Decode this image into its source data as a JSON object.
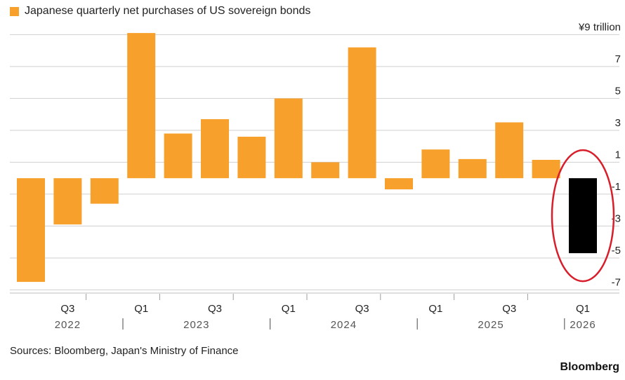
{
  "chart_data": {
    "type": "bar",
    "title": "Japanese quarterly net purchases of US sovereign bonds",
    "unit_label": "¥9 trillion",
    "legend": [
      {
        "label": "Japanese quarterly net purchases of US sovereign bonds",
        "color": "#f7a12c"
      }
    ],
    "categories": [
      "2022 Q2",
      "2022 Q3",
      "2022 Q4",
      "2023 Q1",
      "2023 Q2",
      "2023 Q3",
      "2023 Q4",
      "2024 Q1",
      "2024 Q2",
      "2024 Q3",
      "2024 Q4",
      "2025 Q1",
      "2025 Q2",
      "2025 Q3",
      "2025 Q4",
      "2026 Q1"
    ],
    "values": [
      -6.5,
      -2.9,
      -1.6,
      9.1,
      2.8,
      3.7,
      2.6,
      5.0,
      1.0,
      8.2,
      -0.7,
      1.8,
      1.2,
      3.5,
      1.15,
      -4.7
    ],
    "highlight_index": 15,
    "bar_color": "#f7a12c",
    "highlight_color": "#000000",
    "annotation_ellipse_color": "#d81e2a",
    "ylim": [
      -7.2,
      9.5
    ],
    "yticks": [
      9,
      7,
      5,
      3,
      1,
      -1,
      -3,
      -5,
      -7
    ],
    "ytick_labels": [
      "¥9 trillion",
      "7",
      "5",
      "3",
      "1",
      "-1",
      "-3",
      "-5",
      "-7"
    ],
    "xtick_labels": [
      {
        "index": 1,
        "label": "Q3"
      },
      {
        "index": 3,
        "label": "Q1"
      },
      {
        "index": 5,
        "label": "Q3"
      },
      {
        "index": 7,
        "label": "Q1"
      },
      {
        "index": 9,
        "label": "Q3"
      },
      {
        "index": 11,
        "label": "Q1"
      },
      {
        "index": 13,
        "label": "Q3"
      },
      {
        "index": 15,
        "label": "Q1"
      }
    ],
    "year_groups": [
      {
        "label": "2022",
        "start": 0,
        "end": 2
      },
      {
        "label": "2023",
        "start": 3,
        "end": 6
      },
      {
        "label": "2024",
        "start": 7,
        "end": 10
      },
      {
        "label": "2025",
        "start": 11,
        "end": 14
      },
      {
        "label": "2026",
        "start": 15,
        "end": 15
      }
    ],
    "grid": true
  },
  "source": "Sources: Bloomberg, Japan's Ministry of Finance",
  "brand": "Bloomberg"
}
